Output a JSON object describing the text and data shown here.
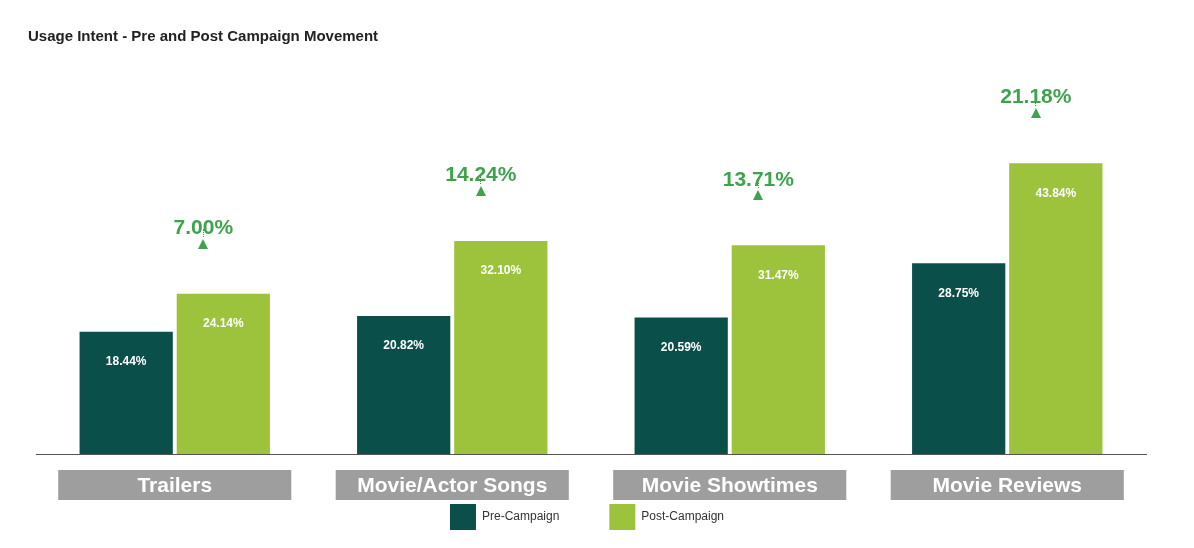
{
  "chart_data": {
    "type": "bar",
    "title": "Usage Intent - Pre and Post Campaign Movement",
    "categories": [
      "Trailers",
      "Movie/Actor Songs",
      "Movie Showtimes",
      "Movie Reviews"
    ],
    "series": [
      {
        "name": "Pre-Campaign",
        "color": "#0b4f4a",
        "values": [
          18.44,
          20.82,
          20.59,
          28.75
        ],
        "value_labels": [
          "18.44%",
          "20.82%",
          "20.59%",
          "28.75%"
        ]
      },
      {
        "name": "Post-Campaign",
        "color": "#9dc23b",
        "values": [
          24.14,
          32.1,
          31.47,
          43.84
        ],
        "value_labels": [
          "24.14%",
          "32.10%",
          "31.47%",
          "43.84%"
        ]
      }
    ],
    "annotations": [
      {
        "text": "7.00%",
        "x": "Trailers",
        "y": 24.14
      },
      {
        "text": "14.24%",
        "x": "Movie/Actor Songs",
        "y": 32.1
      },
      {
        "text": "13.71%",
        "x": "Movie Showtimes",
        "y": 31.47
      },
      {
        "text": "21.18%",
        "x": "Movie Reviews",
        "y": 43.84
      }
    ],
    "grid": false,
    "legend": "bottom"
  }
}
